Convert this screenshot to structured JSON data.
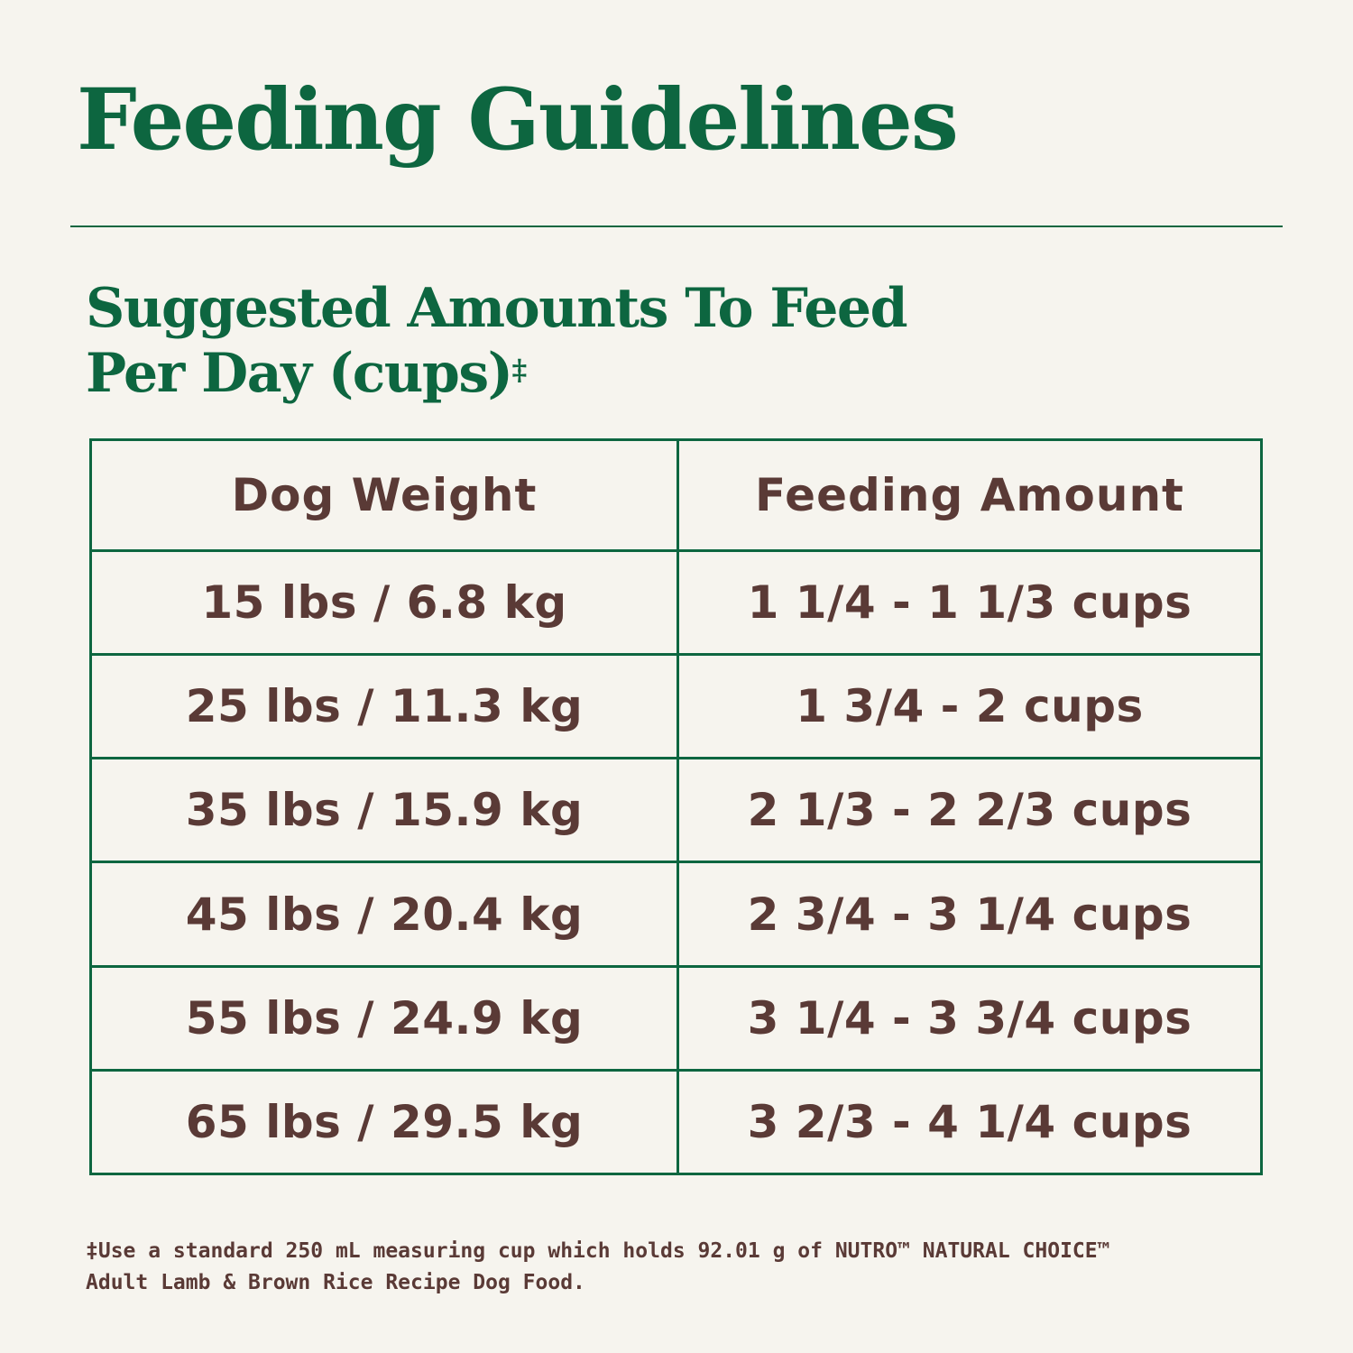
{
  "title": "Feeding Guidelines",
  "subtitle": {
    "line1": "Suggested Amounts To Feed",
    "line2": "Per Day (cups)",
    "mark": "‡"
  },
  "table": {
    "headers": [
      "Dog Weight",
      "Feeding Amount"
    ],
    "rows": [
      [
        "15 lbs / 6.8 kg",
        "1 1/4 - 1 1/3 cups"
      ],
      [
        "25 lbs / 11.3 kg",
        "1 3/4 - 2 cups"
      ],
      [
        "35 lbs / 15.9 kg",
        "2 1/3 - 2 2/3 cups"
      ],
      [
        "45 lbs / 20.4 kg",
        "2 3/4 - 3 1/4 cups"
      ],
      [
        "55 lbs / 24.9 kg",
        "3 1/4 - 3 3/4 cups"
      ],
      [
        "65 lbs / 29.5 kg",
        "3 2/3 - 4 1/4 cups"
      ]
    ]
  },
  "footnote": {
    "line1": "‡Use a standard 250 mL measuring cup which holds 92.01 g of NUTRO™ NATURAL CHOICE™",
    "line2": "Adult Lamb & Brown Rice Recipe Dog Food."
  },
  "colors": {
    "accent": "#0d6640",
    "text": "#5a3a36",
    "background": "#f6f4ee"
  }
}
